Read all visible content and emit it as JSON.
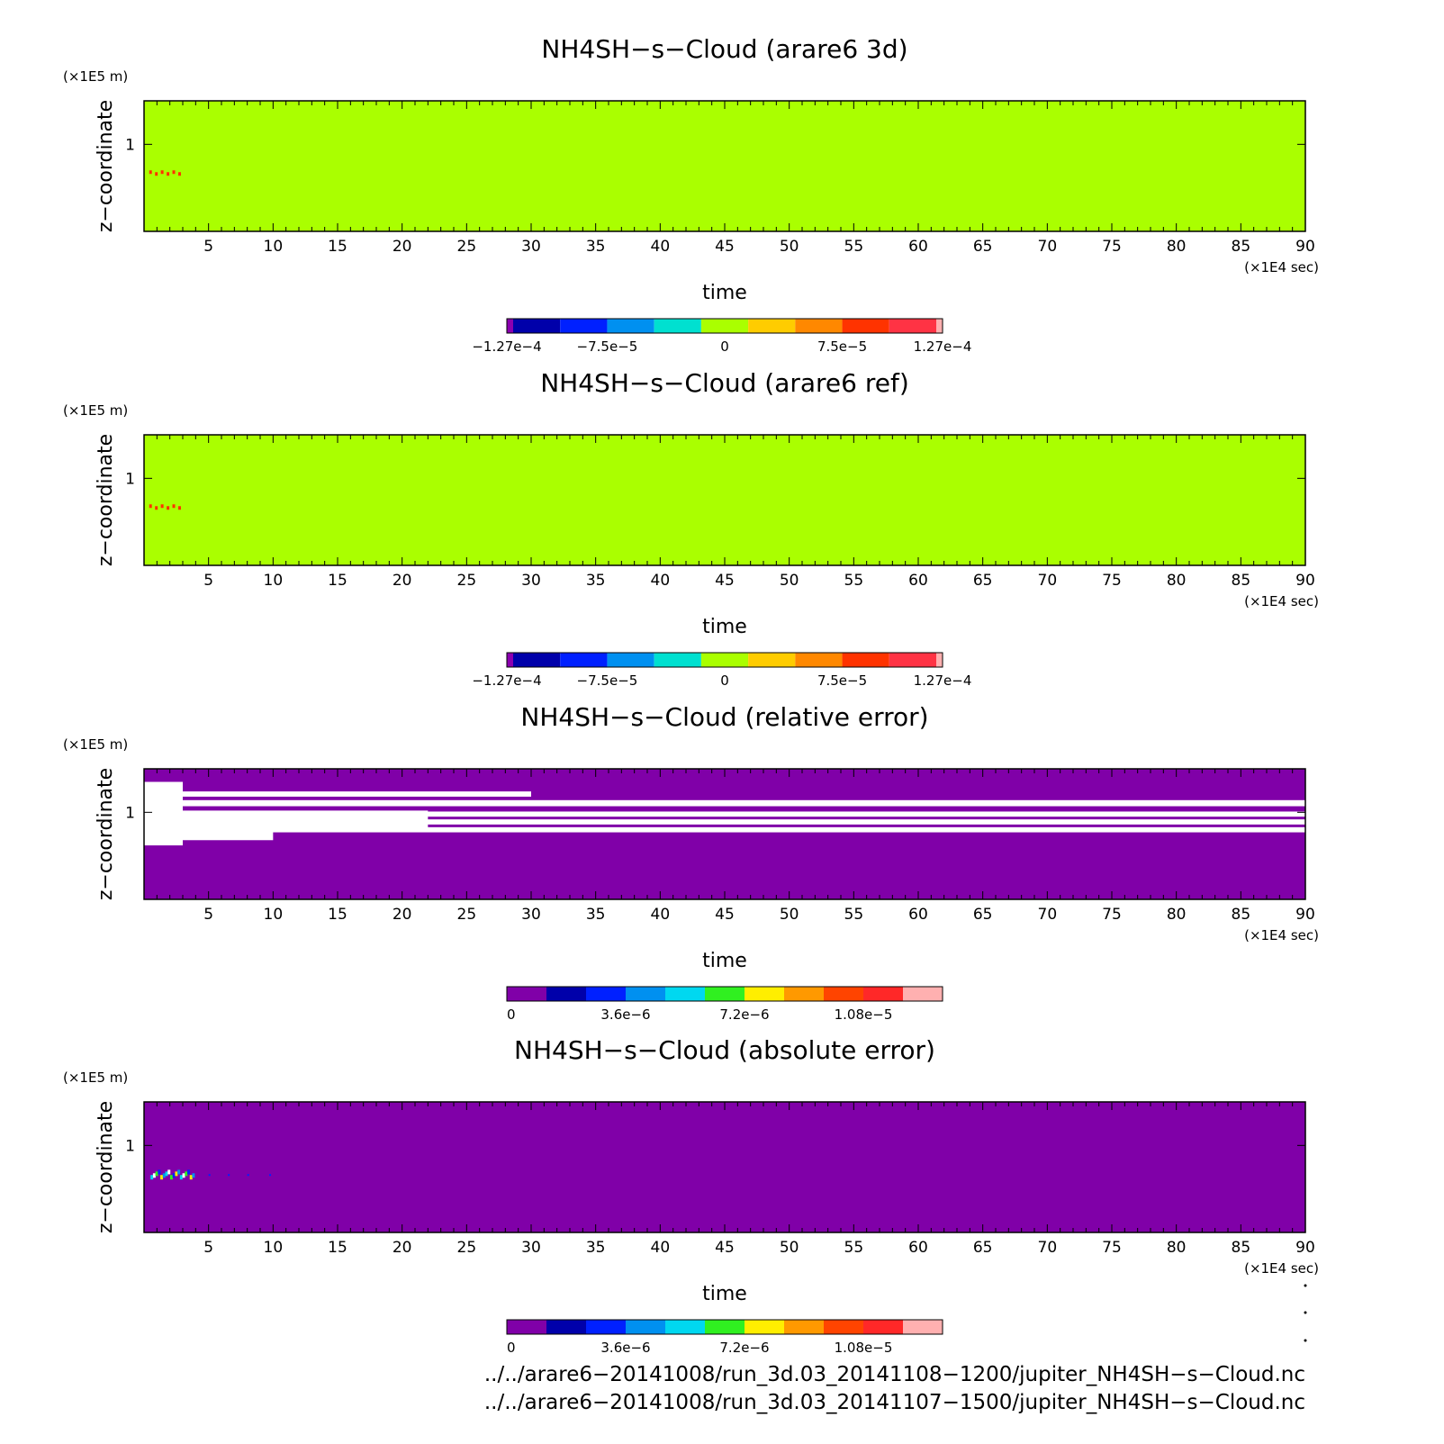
{
  "chart_data": [
    {
      "type": "heatmap",
      "title": "NH4SH−s−Cloud (arare6 3d)",
      "xlabel": "time",
      "ylabel": "z−coordinate",
      "x_unit": "(×1E4 sec)",
      "y_unit": "(×1E5 m)",
      "xlim": [
        0,
        90
      ],
      "x_ticks": [
        "5",
        "10",
        "15",
        "20",
        "25",
        "30",
        "35",
        "40",
        "45",
        "50",
        "55",
        "60",
        "65",
        "70",
        "75",
        "80",
        "85",
        "90"
      ],
      "y_ticks": [
        "1"
      ],
      "background_color": "#aaff00",
      "features": [
        "small red patch near x≈1–3, z≈0.67"
      ],
      "colorbar": {
        "colors": [
          "#8b00b0",
          "#0000aa",
          "#0020ff",
          "#0090f0",
          "#00e0d0",
          "#aaff00",
          "#ffcc00",
          "#ff8800",
          "#ff3300",
          "#ff3344",
          "#ffb0b0"
        ],
        "labels": [
          "−1.27e−4",
          "−7.5e−5",
          "0",
          "7.5e−5",
          "1.27e−4"
        ]
      }
    },
    {
      "type": "heatmap",
      "title": "NH4SH−s−Cloud (arare6 ref)",
      "xlabel": "time",
      "ylabel": "z−coordinate",
      "x_unit": "(×1E4 sec)",
      "y_unit": "(×1E5 m)",
      "xlim": [
        0,
        90
      ],
      "x_ticks": [
        "5",
        "10",
        "15",
        "20",
        "25",
        "30",
        "35",
        "40",
        "45",
        "50",
        "55",
        "60",
        "65",
        "70",
        "75",
        "80",
        "85",
        "90"
      ],
      "y_ticks": [
        "1"
      ],
      "background_color": "#aaff00",
      "features": [
        "small red patch near x≈1–3, z≈0.67"
      ],
      "colorbar": {
        "colors": [
          "#8b00b0",
          "#0000aa",
          "#0020ff",
          "#0090f0",
          "#00e0d0",
          "#aaff00",
          "#ffcc00",
          "#ff8800",
          "#ff3300",
          "#ff3344",
          "#ffb0b0"
        ],
        "labels": [
          "−1.27e−4",
          "−7.5e−5",
          "0",
          "7.5e−5",
          "1.27e−4"
        ]
      }
    },
    {
      "type": "heatmap",
      "title": "NH4SH−s−Cloud (relative error)",
      "xlabel": "time",
      "ylabel": "z−coordinate",
      "x_unit": "(×1E4 sec)",
      "y_unit": "(×1E5 m)",
      "xlim": [
        0,
        90
      ],
      "x_ticks": [
        "5",
        "10",
        "15",
        "20",
        "25",
        "30",
        "35",
        "40",
        "45",
        "50",
        "55",
        "60",
        "65",
        "70",
        "75",
        "80",
        "85",
        "90"
      ],
      "y_ticks": [
        "1"
      ],
      "background_color": "#8000a8",
      "features": [
        "white (undefined) bands around z≈0.75–1.2"
      ],
      "colorbar": {
        "colors": [
          "#8000a8",
          "#0000aa",
          "#0020ff",
          "#0090f0",
          "#00d8f0",
          "#30f020",
          "#ffee00",
          "#ff9900",
          "#ff4400",
          "#ff2828",
          "#ffb0b0"
        ],
        "labels": [
          "0",
          "3.6e−6",
          "7.2e−6",
          "1.08e−5"
        ]
      }
    },
    {
      "type": "heatmap",
      "title": "NH4SH−s−Cloud (absolute error)",
      "xlabel": "time",
      "ylabel": "z−coordinate",
      "x_unit": "(×1E4 sec)",
      "y_unit": "(×1E5 m)",
      "xlim": [
        0,
        90
      ],
      "x_ticks": [
        "5",
        "10",
        "15",
        "20",
        "25",
        "30",
        "35",
        "40",
        "45",
        "50",
        "55",
        "60",
        "65",
        "70",
        "75",
        "80",
        "85",
        "90"
      ],
      "y_ticks": [
        "1"
      ],
      "background_color": "#8000a8",
      "features": [
        "small multicolor patch near x≈1–4, z≈0.7"
      ],
      "colorbar": {
        "colors": [
          "#8000a8",
          "#0000aa",
          "#0020ff",
          "#0090f0",
          "#00d8f0",
          "#30f020",
          "#ffee00",
          "#ff9900",
          "#ff4400",
          "#ff2828",
          "#ffb0b0"
        ],
        "labels": [
          "0",
          "3.6e−6",
          "7.2e−6",
          "1.08e−5"
        ]
      }
    }
  ],
  "footer": {
    "line1": "../../arare6−20141008/run_3d.03_20141108−1200/jupiter_NH4SH−s−Cloud.nc",
    "line2": "../../arare6−20141008/run_3d.03_20141107−1500/jupiter_NH4SH−s−Cloud.nc"
  }
}
